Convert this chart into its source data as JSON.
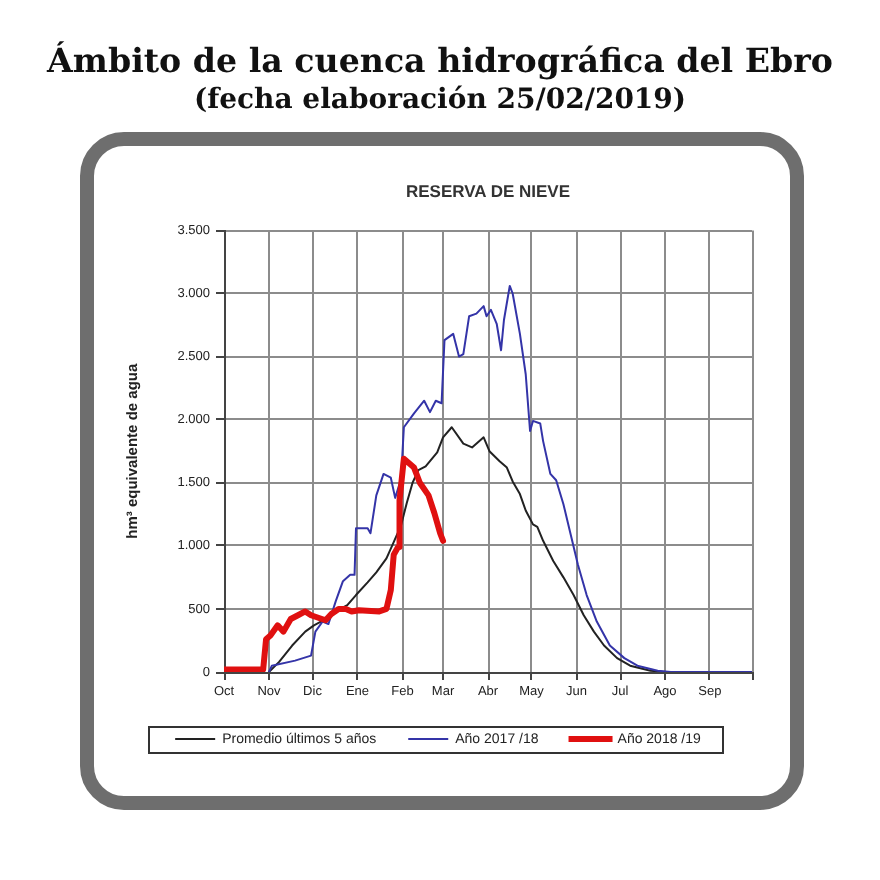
{
  "chart_data": {
    "type": "line",
    "title": "Ámbito de la cuenca hidrográfica del Ebro",
    "subtitle": "(fecha elaboración 25/02/2019)",
    "annotations": [
      "RESERVA DE NIEVE"
    ],
    "ylabel": "hm³ equivalente de agua",
    "xlim": [
      "2018-10-01",
      "2019-09-30"
    ],
    "xticks": [
      {
        "value": "2018-10-01",
        "label": "Oct"
      },
      {
        "value": "2018-11-01",
        "label": "Nov"
      },
      {
        "value": "2018-12-01",
        "label": "Dic"
      },
      {
        "value": "2019-01-01",
        "label": "Ene"
      },
      {
        "value": "2019-02-01",
        "label": "Feb"
      },
      {
        "value": "2019-03-01",
        "label": "Mar"
      },
      {
        "value": "2019-04-01",
        "label": "Abr"
      },
      {
        "value": "2019-05-01",
        "label": "May"
      },
      {
        "value": "2019-06-01",
        "label": "Jun"
      },
      {
        "value": "2019-07-01",
        "label": "Jul"
      },
      {
        "value": "2019-08-01",
        "label": "Ago"
      },
      {
        "value": "2019-09-01",
        "label": "Sep"
      },
      {
        "value": "2019-09-30",
        "label": null
      }
    ],
    "ylim": [
      0,
      3500
    ],
    "yticks": [
      0,
      500,
      {
        "value": 1000,
        "label": "1.000"
      },
      {
        "value": 1500,
        "label": "1.500"
      },
      {
        "value": 2000,
        "label": "2.000"
      },
      {
        "value": 2500,
        "label": "2.500"
      },
      {
        "value": 3000,
        "label": "3.000"
      },
      {
        "value": 3500,
        "label": "3.500"
      }
    ],
    "grid": true,
    "legend": "bottom",
    "series": [
      {
        "name": "Promedio últimos 5 años",
        "color": "#222222",
        "x": [
          "2018-11-01",
          "2018-11-08",
          "2018-11-17",
          "2018-11-26",
          "2018-12-02",
          "2018-12-10",
          "2018-12-17",
          "2018-12-25",
          "2018-12-31",
          "2019-01-08",
          "2019-01-14",
          "2019-01-21",
          "2019-01-26",
          "2019-01-31",
          "2019-02-04",
          "2019-02-08",
          "2019-02-12",
          "2019-02-17",
          "2019-02-25",
          "2019-03-01",
          "2019-03-07",
          "2019-03-15",
          "2019-03-21",
          "2019-03-29",
          "2019-04-02",
          "2019-04-09",
          "2019-04-14",
          "2019-04-18",
          "2019-04-23",
          "2019-04-27",
          "2019-05-02",
          "2019-05-05",
          "2019-05-09",
          "2019-05-16",
          "2019-05-23",
          "2019-05-30",
          "2019-06-06",
          "2019-06-13",
          "2019-06-20",
          "2019-06-29",
          "2019-07-08",
          "2019-07-22",
          "2019-08-01",
          "2019-09-30"
        ],
        "values": [
          0,
          80,
          210,
          320,
          370,
          420,
          480,
          530,
          610,
          710,
          790,
          900,
          1030,
          1160,
          1340,
          1500,
          1600,
          1630,
          1740,
          1860,
          1940,
          1810,
          1780,
          1860,
          1750,
          1670,
          1620,
          1510,
          1410,
          1280,
          1170,
          1150,
          1040,
          880,
          750,
          610,
          450,
          320,
          210,
          110,
          50,
          10,
          0,
          0
        ]
      },
      {
        "name": "Año 2017 /18",
        "color": "#3434a8",
        "x": [
          "2018-11-01",
          "2018-11-03",
          "2018-11-19",
          "2018-11-30",
          "2018-12-03",
          "2018-12-08",
          "2018-12-12",
          "2018-12-17",
          "2018-12-22",
          "2018-12-27",
          "2018-12-30",
          "2018-12-31",
          "2019-01-08",
          "2019-01-10",
          "2019-01-14",
          "2019-01-19",
          "2019-01-24",
          "2019-01-27",
          "2019-01-30",
          "2019-01-31",
          "2019-02-02",
          "2019-02-09",
          "2019-02-16",
          "2019-02-20",
          "2019-02-24",
          "2019-02-28",
          "2019-03-02",
          "2019-03-08",
          "2019-03-12",
          "2019-03-15",
          "2019-03-19",
          "2019-03-24",
          "2019-03-29",
          "2019-03-31",
          "2019-04-03",
          "2019-04-07",
          "2019-04-10",
          "2019-04-12",
          "2019-04-16",
          "2019-04-18",
          "2019-04-23",
          "2019-04-27",
          "2019-04-30",
          "2019-05-02",
          "2019-05-07",
          "2019-05-09",
          "2019-05-14",
          "2019-05-18",
          "2019-05-23",
          "2019-05-28",
          "2019-06-02",
          "2019-06-08",
          "2019-06-15",
          "2019-06-24",
          "2019-07-04",
          "2019-07-13",
          "2019-07-27",
          "2019-08-05",
          "2019-09-30"
        ],
        "values": [
          0,
          50,
          90,
          130,
          320,
          400,
          380,
          560,
          720,
          770,
          770,
          1140,
          1140,
          1100,
          1400,
          1570,
          1540,
          1380,
          1490,
          1520,
          1940,
          2050,
          2150,
          2060,
          2150,
          2130,
          2630,
          2680,
          2500,
          2520,
          2820,
          2840,
          2900,
          2820,
          2870,
          2760,
          2550,
          2790,
          3060,
          3000,
          2680,
          2360,
          1910,
          1990,
          1970,
          1830,
          1570,
          1520,
          1330,
          1090,
          850,
          610,
          400,
          210,
          110,
          50,
          10,
          0,
          0
        ]
      },
      {
        "name": "Año 2018 /19",
        "color": "#e01010",
        "x": [
          "2018-10-01",
          "2018-10-28",
          "2018-10-30",
          "2018-11-02",
          "2018-11-07",
          "2018-11-11",
          "2018-11-16",
          "2018-11-21",
          "2018-11-26",
          "2018-11-30",
          "2018-12-05",
          "2018-12-10",
          "2018-12-14",
          "2018-12-19",
          "2018-12-24",
          "2018-12-28",
          "2019-01-02",
          "2019-01-16",
          "2019-01-21",
          "2019-01-24",
          "2019-01-26",
          "2019-01-29",
          "2019-01-30",
          "2019-02-02",
          "2019-02-09",
          "2019-02-13",
          "2019-02-19",
          "2019-02-23",
          "2019-02-27",
          "2019-03-01"
        ],
        "values": [
          20,
          20,
          260,
          290,
          370,
          320,
          420,
          450,
          480,
          450,
          430,
          410,
          460,
          500,
          500,
          480,
          490,
          480,
          500,
          650,
          930,
          990,
          1360,
          1690,
          1620,
          1500,
          1400,
          1260,
          1100,
          1040
        ]
      }
    ]
  }
}
